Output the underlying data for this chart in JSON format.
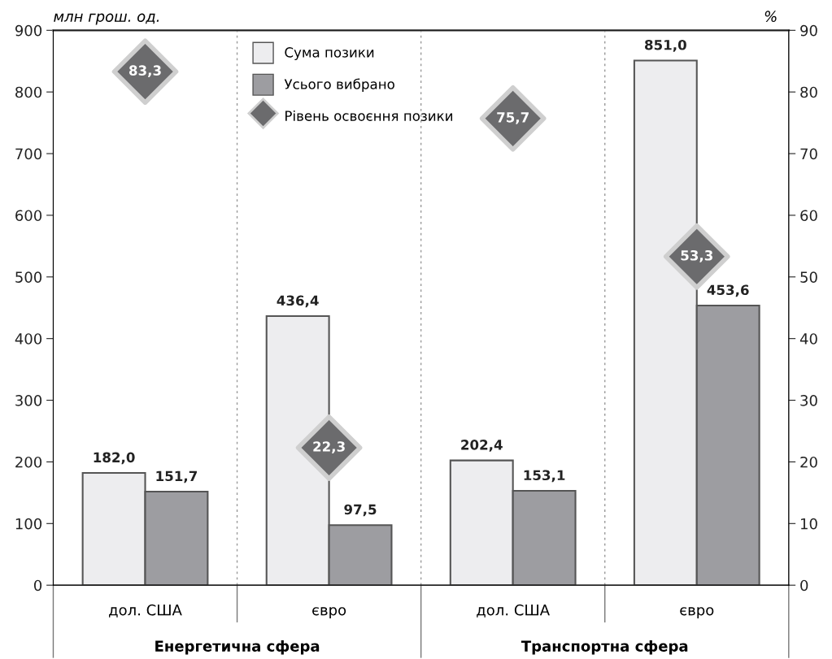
{
  "chart_data": {
    "type": "bar",
    "categories": [
      "дол. США",
      "євро",
      "дол. США",
      "євро"
    ],
    "series": [
      {
        "name": "Сума позики",
        "color": "#ededef",
        "values": [
          182.0,
          436.4,
          202.4,
          851.0
        ],
        "value_labels": [
          "182,0",
          "436,4",
          "202,4",
          "851,0"
        ]
      },
      {
        "name": "Усього вибрано",
        "color": "#9d9da1",
        "values": [
          151.7,
          97.5,
          153.1,
          453.6
        ],
        "value_labels": [
          "151,7",
          "97,5",
          "153,1",
          "453,6"
        ]
      },
      {
        "name": "Рівень освоєння позики",
        "type": "scatter",
        "axis": "y2",
        "marker": "diamond",
        "color": "#6b6b6d",
        "values": [
          83.3,
          22.3,
          75.7,
          53.3
        ],
        "value_labels": [
          "83,3",
          "22,3",
          "75,7",
          "53,3"
        ]
      }
    ],
    "ylabel": "млн грош. од.",
    "y2label": "%",
    "ylim": [
      0,
      900
    ],
    "yticks": [
      0,
      100,
      200,
      300,
      400,
      500,
      600,
      700,
      800,
      900
    ],
    "y2lim": [
      0,
      90
    ],
    "y2ticks": [
      0,
      10,
      20,
      30,
      40,
      50,
      60,
      70,
      80,
      90
    ],
    "annotations": [
      "Енергетична сфера",
      "Транспортна сфера"
    ],
    "grid": false,
    "legend": "top"
  }
}
